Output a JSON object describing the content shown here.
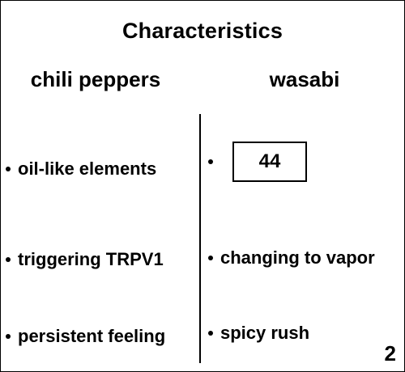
{
  "title": "Characteristics",
  "columns": {
    "left": {
      "heading": "chili peppers",
      "items": [
        "oil-like elements",
        "triggering TRPV1",
        "persistent feeling"
      ]
    },
    "right": {
      "heading": "wasabi",
      "items": [
        "44",
        "changing to vapor",
        "spicy rush"
      ]
    }
  },
  "page_number": "2"
}
